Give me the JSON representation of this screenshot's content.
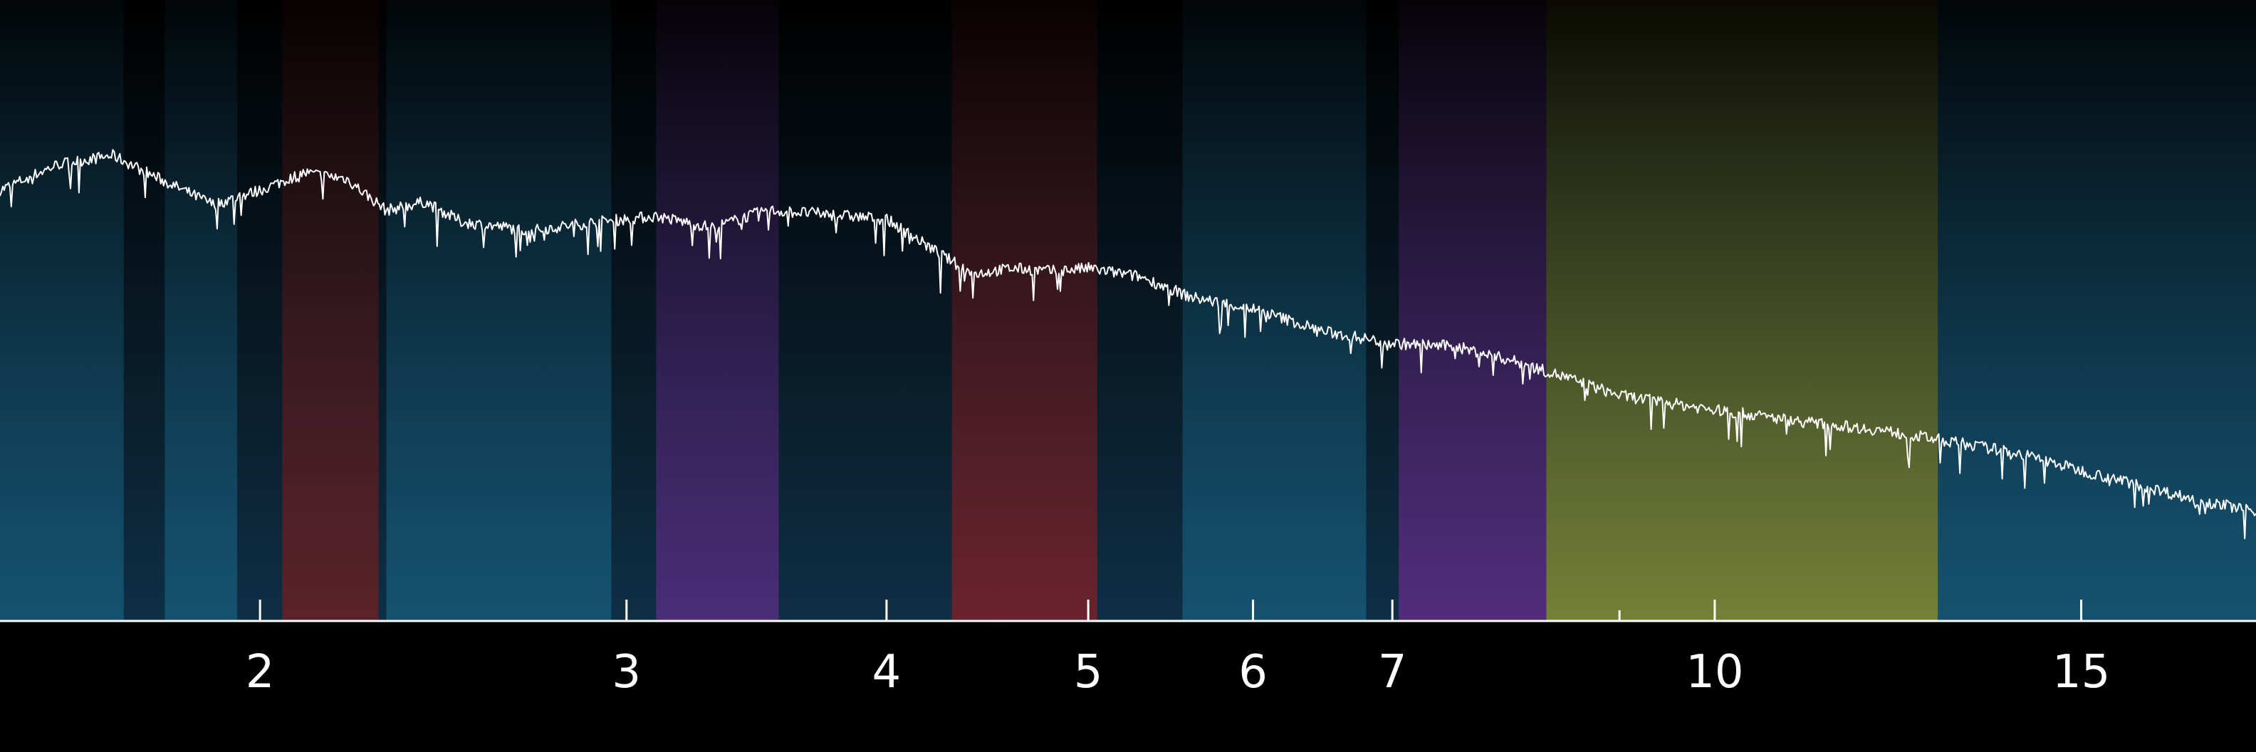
{
  "chart_data": {
    "type": "line",
    "title": "",
    "xlabel": "",
    "ylabel": "",
    "x_scale": "log",
    "xlim": [
      1.5,
      18.2
    ],
    "ylim": [
      0,
      1
    ],
    "grid": false,
    "legend": "none",
    "ticks": [
      {
        "value": 2,
        "label": "2"
      },
      {
        "value": 3,
        "label": "3"
      },
      {
        "value": 4,
        "label": "4"
      },
      {
        "value": 5,
        "label": "5"
      },
      {
        "value": 6,
        "label": "6"
      },
      {
        "value": 7,
        "label": "7"
      },
      {
        "value": 10,
        "label": "10"
      },
      {
        "value": 15,
        "label": "15"
      }
    ],
    "minor_ticks": [
      9
    ],
    "bands": [
      {
        "from": 1.5,
        "to": 1.72,
        "color": "#1a6f93"
      },
      {
        "from": 1.8,
        "to": 1.95,
        "color": "#1a6f93"
      },
      {
        "from": 2.05,
        "to": 2.28,
        "color": "#9a1712"
      },
      {
        "from": 2.3,
        "to": 2.95,
        "color": "#1a6f93"
      },
      {
        "from": 3.1,
        "to": 3.55,
        "color": "#7a2aa0"
      },
      {
        "from": 4.3,
        "to": 5.05,
        "color": "#b5181a"
      },
      {
        "from": 5.55,
        "to": 6.8,
        "color": "#1a6f93"
      },
      {
        "from": 7.05,
        "to": 8.3,
        "color": "#8a2aa8"
      },
      {
        "from": 8.3,
        "to": 12.8,
        "color": "#c8c22a"
      },
      {
        "from": 12.8,
        "to": 18.2,
        "color": "#1a6f93"
      }
    ],
    "series": [
      {
        "x": [
          1.5,
          1.6,
          1.7,
          1.8,
          1.9,
          2.0,
          2.1,
          2.2,
          2.3,
          2.4,
          2.5,
          2.7,
          2.9,
          3.1,
          3.3,
          3.5,
          3.7,
          4.0,
          4.2,
          4.4,
          4.6,
          4.8,
          5.0,
          5.3,
          5.6,
          6.0,
          6.5,
          7.0,
          7.5,
          8.0,
          8.5,
          9.0,
          10.0,
          11.0,
          12.0,
          13.0,
          14.0,
          15.0,
          16.0,
          17.0,
          18.2
        ],
        "y": [
          0.745,
          0.79,
          0.805,
          0.76,
          0.72,
          0.745,
          0.775,
          0.765,
          0.71,
          0.725,
          0.69,
          0.675,
          0.69,
          0.7,
          0.68,
          0.71,
          0.705,
          0.695,
          0.645,
          0.6,
          0.61,
          0.605,
          0.61,
          0.595,
          0.56,
          0.54,
          0.5,
          0.48,
          0.475,
          0.45,
          0.42,
          0.39,
          0.365,
          0.345,
          0.33,
          0.31,
          0.29,
          0.26,
          0.235,
          0.21,
          0.19
        ]
      }
    ]
  }
}
